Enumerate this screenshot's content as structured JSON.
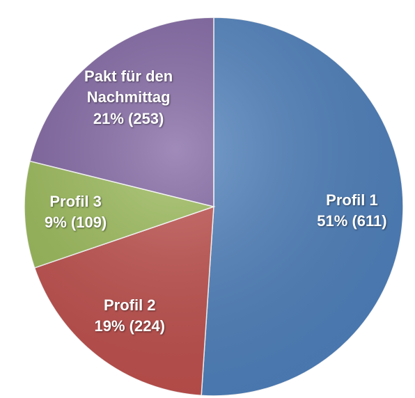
{
  "chart_data": {
    "type": "pie",
    "categories": [
      "Profil 1",
      "Profil 2",
      "Profil 3",
      "Pakt für den Nachmittag"
    ],
    "values": [
      611,
      224,
      109,
      253
    ],
    "value_labels": [
      "51% (611)",
      "19% (224)",
      "9% (109)",
      "21% (253)"
    ],
    "colors": [
      "#4f81bd",
      "#c0504d",
      "#9bbb59",
      "#8064a2"
    ]
  }
}
